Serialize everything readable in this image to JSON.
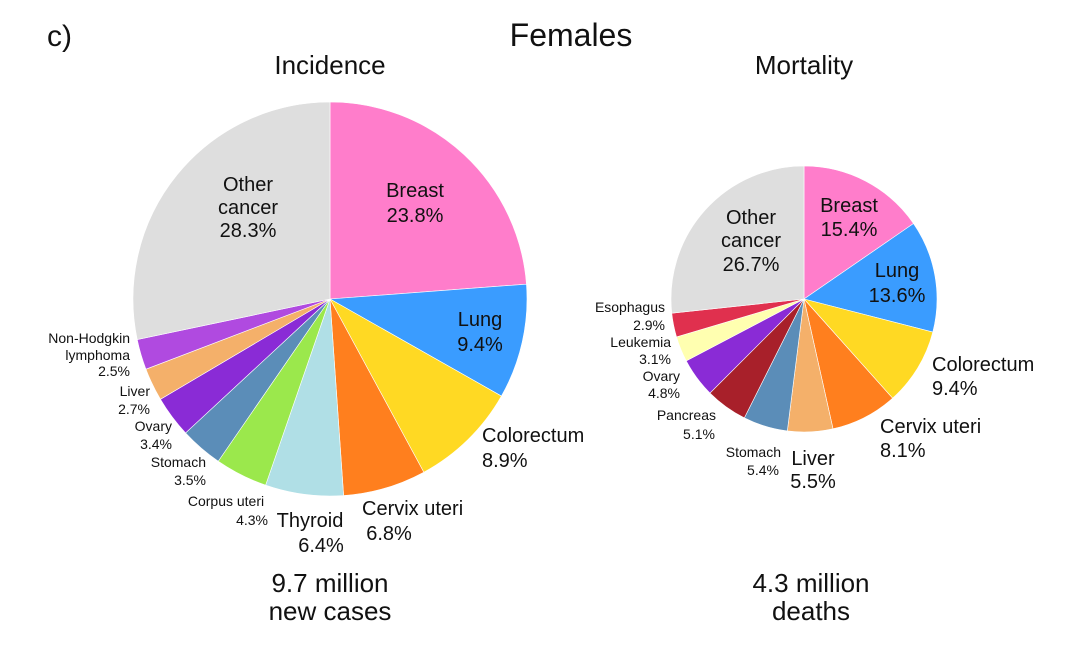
{
  "panel_label": "c)",
  "figure_title": "Females",
  "chart_data": [
    {
      "type": "pie",
      "title": "Incidence",
      "total_label": [
        "9.7 million",
        "new cases"
      ],
      "slices": [
        {
          "label": "Breast",
          "value": 23.8,
          "display": "23.8%",
          "color": "#ff7dcb"
        },
        {
          "label": "Lung",
          "value": 9.4,
          "display": "9.4%",
          "color": "#3a9cff"
        },
        {
          "label": "Colorectum",
          "value": 8.9,
          "display": "8.9%",
          "color": "#ffd923"
        },
        {
          "label": "Cervix uteri",
          "value": 6.8,
          "display": "6.8%",
          "color": "#ff7f1e"
        },
        {
          "label": "Thyroid",
          "value": 6.4,
          "display": "6.4%",
          "color": "#b0dfe6"
        },
        {
          "label": "Corpus uteri",
          "value": 4.3,
          "display": "4.3%",
          "color": "#9be84c"
        },
        {
          "label": "Stomach",
          "value": 3.5,
          "display": "3.5%",
          "color": "#5b8db8"
        },
        {
          "label": "Ovary",
          "value": 3.4,
          "display": "3.4%",
          "color": "#8a2bd6"
        },
        {
          "label": "Liver",
          "value": 2.7,
          "display": "2.7%",
          "color": "#f4b06a"
        },
        {
          "label": "Non-Hodgkin lymphoma",
          "value": 2.5,
          "display": "2.5%",
          "color": "#b04ae0"
        },
        {
          "label": "Other cancer",
          "value": 28.3,
          "display": "28.3%",
          "color": "#dedede"
        }
      ]
    },
    {
      "type": "pie",
      "title": "Mortality",
      "total_label": [
        "4.3 million",
        "deaths"
      ],
      "slices": [
        {
          "label": "Breast",
          "value": 15.4,
          "display": "15.4%",
          "color": "#ff7dcb"
        },
        {
          "label": "Lung",
          "value": 13.6,
          "display": "13.6%",
          "color": "#3a9cff"
        },
        {
          "label": "Colorectum",
          "value": 9.4,
          "display": "9.4%",
          "color": "#ffd923"
        },
        {
          "label": "Cervix uteri",
          "value": 8.1,
          "display": "8.1%",
          "color": "#ff7f1e"
        },
        {
          "label": "Liver",
          "value": 5.5,
          "display": "5.5%",
          "color": "#f4b06a"
        },
        {
          "label": "Stomach",
          "value": 5.4,
          "display": "5.4%",
          "color": "#5b8db8"
        },
        {
          "label": "Pancreas",
          "value": 5.1,
          "display": "5.1%",
          "color": "#a8202a"
        },
        {
          "label": "Ovary",
          "value": 4.8,
          "display": "4.8%",
          "color": "#8a2bd6"
        },
        {
          "label": "Leukemia",
          "value": 3.1,
          "display": "3.1%",
          "color": "#ffffb0"
        },
        {
          "label": "Esophagus",
          "value": 2.9,
          "display": "2.9%",
          "color": "#e0304e"
        },
        {
          "label": "Other cancer",
          "value": 26.7,
          "display": "26.7%",
          "color": "#dedede"
        }
      ]
    }
  ]
}
